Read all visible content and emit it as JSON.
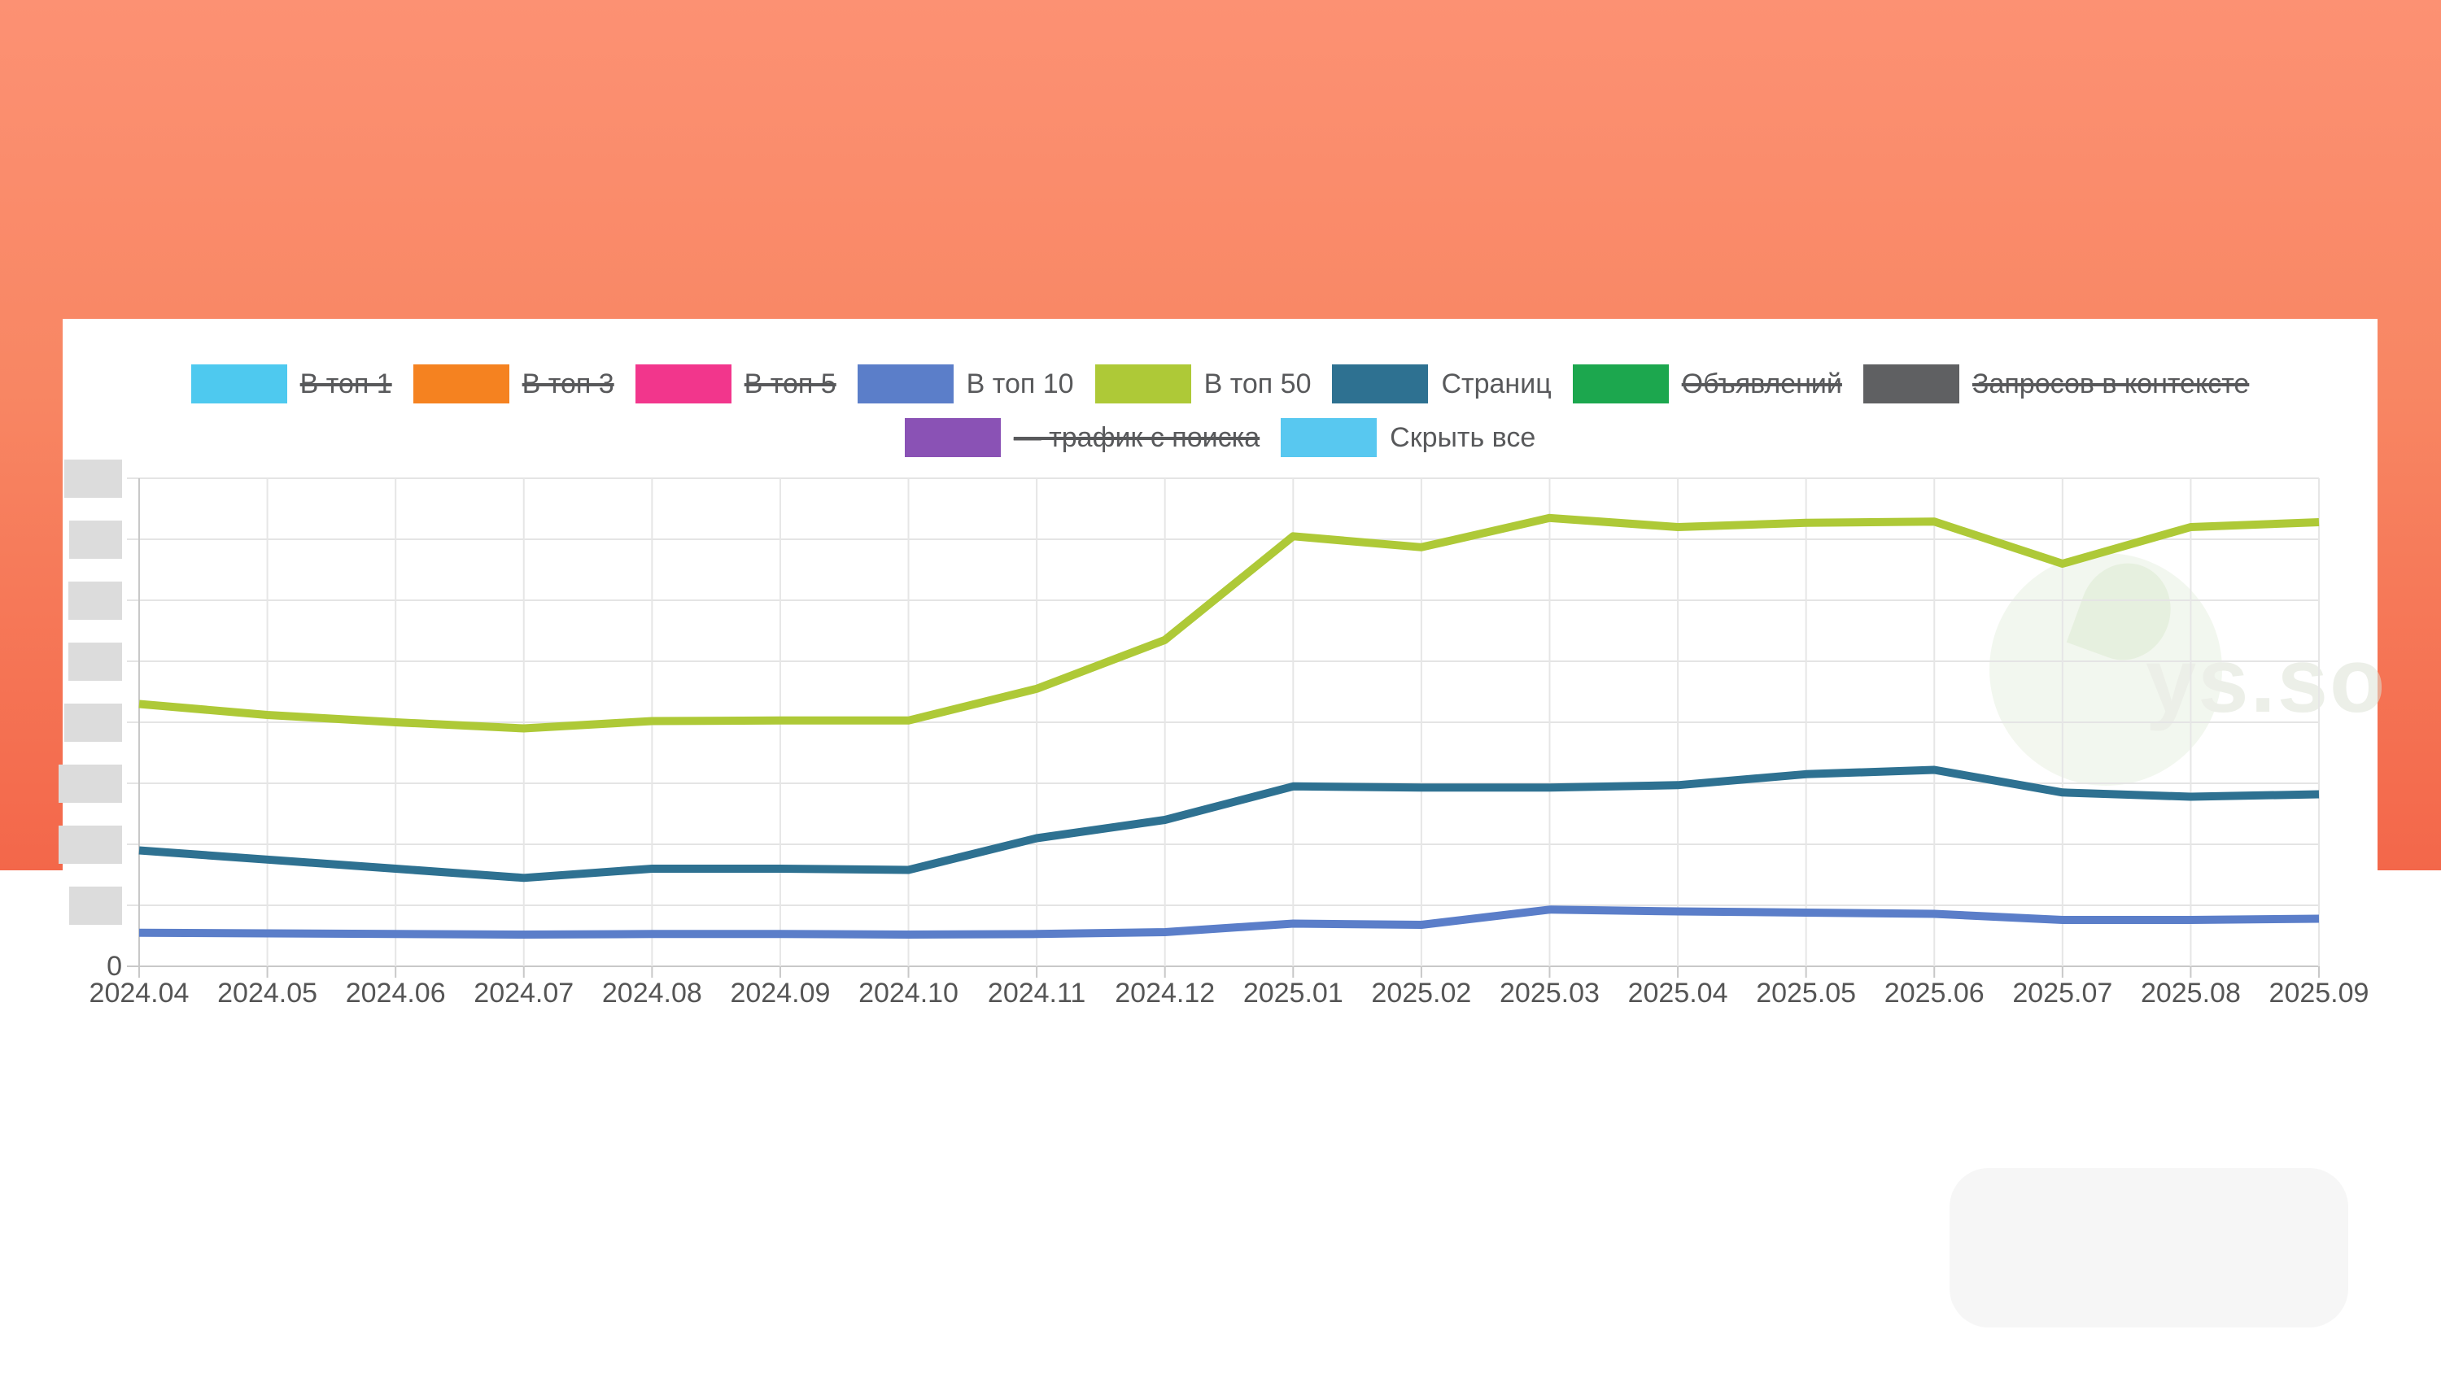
{
  "window": {
    "background_top_color": "#fc9173",
    "background_bottom_color": "#f3674a",
    "panel_color": "#ffffff"
  },
  "legend": {
    "row1": [
      {
        "label": "В топ 1",
        "color": "#4ec9ef",
        "struck": true
      },
      {
        "label": "В топ 3",
        "color": "#f58220",
        "struck": true
      },
      {
        "label": "В топ 5",
        "color": "#f2368c",
        "struck": true
      },
      {
        "label": "В топ 10",
        "color": "#5b7ec9",
        "struck": false
      },
      {
        "label": "В топ 50",
        "color": "#aec937",
        "struck": false
      },
      {
        "label": "Страниц",
        "color": "#2e7191",
        "struck": false
      },
      {
        "label": "Объявлений",
        "color": "#1ca74e",
        "struck": true
      },
      {
        "label": "Запросов в контексте",
        "color": "#5f6062",
        "struck": true
      }
    ],
    "row2": [
      {
        "label": "трафик с поиска",
        "color": "#8a52b5",
        "struck": true,
        "dash_prefix": "— "
      },
      {
        "label": "Скрыть все",
        "color": "#58c8f0",
        "struck": false
      }
    ]
  },
  "watermark": {
    "text": "ys.so"
  },
  "axes": {
    "origin_label": "0",
    "y_labels_redacted": true
  },
  "censor_blocks": {
    "widths": [
      71,
      65,
      66,
      66,
      71,
      78,
      78,
      65
    ]
  },
  "chart_data": {
    "type": "line",
    "x": [
      "2024.04",
      "2024.05",
      "2024.06",
      "2024.07",
      "2024.08",
      "2024.09",
      "2024.10",
      "2024.11",
      "2024.12",
      "2025.01",
      "2025.02",
      "2025.03",
      "2025.04",
      "2025.05",
      "2025.06",
      "2025.07",
      "2025.08",
      "2025.09"
    ],
    "y_axis": {
      "min": 0,
      "max": 8,
      "gridline_step": 1,
      "visible_tick_labels": [
        "0"
      ],
      "redacted_tick_count": 8,
      "note": "numeric y-axis tick labels are covered by gray blocks; series values below are in gridline units"
    },
    "grid": true,
    "legend_position": "top",
    "series": [
      {
        "name": "В топ 50",
        "color": "#aec937",
        "values": [
          4.3,
          4.12,
          4.0,
          3.9,
          4.02,
          4.03,
          4.03,
          4.55,
          5.35,
          7.05,
          6.87,
          7.35,
          7.2,
          7.27,
          7.29,
          6.6,
          7.2,
          7.28
        ]
      },
      {
        "name": "Страниц",
        "color": "#2e7191",
        "values": [
          1.9,
          1.75,
          1.6,
          1.45,
          1.6,
          1.6,
          1.58,
          2.1,
          2.4,
          2.95,
          2.93,
          2.93,
          2.97,
          3.15,
          3.22,
          2.85,
          2.78,
          2.82
        ]
      },
      {
        "name": "В топ 10",
        "color": "#5b7ec9",
        "values": [
          0.55,
          0.54,
          0.53,
          0.52,
          0.53,
          0.53,
          0.52,
          0.53,
          0.56,
          0.7,
          0.68,
          0.93,
          0.9,
          0.88,
          0.86,
          0.76,
          0.76,
          0.78
        ]
      }
    ]
  }
}
